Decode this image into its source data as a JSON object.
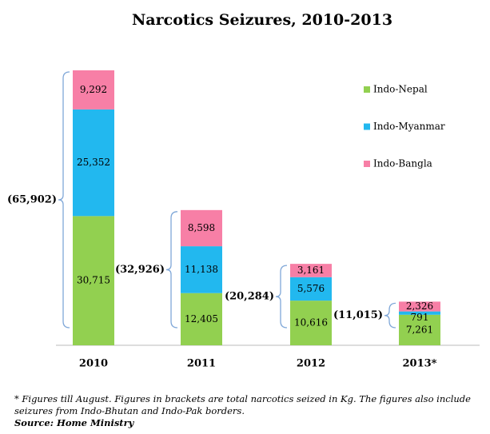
{
  "chart_data": {
    "type": "stacked_bar",
    "title": "Narcotics Seizures, 2010-2013",
    "categories": [
      "2010",
      "2011",
      "2012",
      "2013*"
    ],
    "series": [
      {
        "name": "Indo-Nepal",
        "color": "#92d050",
        "values": [
          30715,
          12405,
          10616,
          7261
        ],
        "value_labels": [
          "30,715",
          "12,405",
          "10,616",
          "7,261"
        ]
      },
      {
        "name": "Indo-Myanmar",
        "color": "#22b8ef",
        "values": [
          25352,
          11138,
          5576,
          791
        ],
        "value_labels": [
          "25,352",
          "11,138",
          "5,576",
          "791"
        ]
      },
      {
        "name": "Indo-Bangla",
        "color": "#f77fa6",
        "values": [
          9292,
          8598,
          3161,
          2326
        ],
        "value_labels": [
          "9,292",
          "8,598",
          "3,161",
          "2,326"
        ]
      }
    ],
    "annotations": [
      "(65,902)",
      "(32,926)",
      "(20,284)",
      "(11,015)"
    ],
    "footnote": "* Figures till August. Figures in brackets are total narcotics seized in Kg. The figures also include seizures from Indo-Bhutan and Indo-Pak borders.",
    "source": "Source: Home Ministry"
  }
}
